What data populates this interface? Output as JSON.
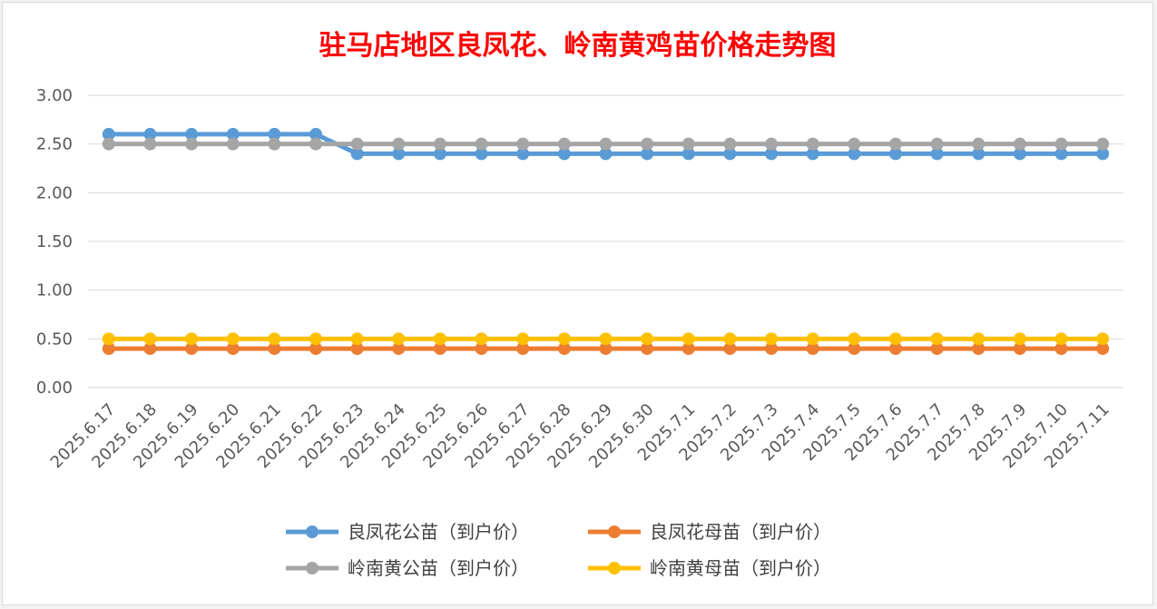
{
  "chart_data": {
    "type": "line",
    "title": "驻马店地区良凤花、岭南黄鸡苗价格走势图",
    "xlabel": "",
    "ylabel": "",
    "ylim": [
      0,
      3
    ],
    "ytick_step": 0.5,
    "grid": true,
    "legend_position": "bottom",
    "categories": [
      "2025.6.17",
      "2025.6.18",
      "2025.6.19",
      "2025.6.20",
      "2025.6.21",
      "2025.6.22",
      "2025.6.23",
      "2025.6.24",
      "2025.6.25",
      "2025.6.26",
      "2025.6.27",
      "2025.6.28",
      "2025.6.29",
      "2025.6.30",
      "2025.7.1",
      "2025.7.2",
      "2025.7.3",
      "2025.7.4",
      "2025.7.5",
      "2025.7.6",
      "2025.7.7",
      "2025.7.8",
      "2025.7.9",
      "2025.7.10",
      "2025.7.11"
    ],
    "yticks": [
      "0.00",
      "0.50",
      "1.00",
      "1.50",
      "2.00",
      "2.50",
      "3.00"
    ],
    "series": [
      {
        "name": "良凤花公苗（到户价）",
        "color": "#5b9bd5",
        "values": [
          2.6,
          2.6,
          2.6,
          2.6,
          2.6,
          2.6,
          2.4,
          2.4,
          2.4,
          2.4,
          2.4,
          2.4,
          2.4,
          2.4,
          2.4,
          2.4,
          2.4,
          2.4,
          2.4,
          2.4,
          2.4,
          2.4,
          2.4,
          2.4,
          2.4
        ]
      },
      {
        "name": "良凤花母苗（到户价）",
        "color": "#ed7d31",
        "values": [
          0.4,
          0.4,
          0.4,
          0.4,
          0.4,
          0.4,
          0.4,
          0.4,
          0.4,
          0.4,
          0.4,
          0.4,
          0.4,
          0.4,
          0.4,
          0.4,
          0.4,
          0.4,
          0.4,
          0.4,
          0.4,
          0.4,
          0.4,
          0.4,
          0.4
        ]
      },
      {
        "name": "岭南黄公苗（到户价）",
        "color": "#a5a5a5",
        "values": [
          2.5,
          2.5,
          2.5,
          2.5,
          2.5,
          2.5,
          2.5,
          2.5,
          2.5,
          2.5,
          2.5,
          2.5,
          2.5,
          2.5,
          2.5,
          2.5,
          2.5,
          2.5,
          2.5,
          2.5,
          2.5,
          2.5,
          2.5,
          2.5,
          2.5
        ]
      },
      {
        "name": "岭南黄母苗（到户价）",
        "color": "#ffc000",
        "values": [
          0.5,
          0.5,
          0.5,
          0.5,
          0.5,
          0.5,
          0.5,
          0.5,
          0.5,
          0.5,
          0.5,
          0.5,
          0.5,
          0.5,
          0.5,
          0.5,
          0.5,
          0.5,
          0.5,
          0.5,
          0.5,
          0.5,
          0.5,
          0.5,
          0.5
        ]
      }
    ]
  }
}
